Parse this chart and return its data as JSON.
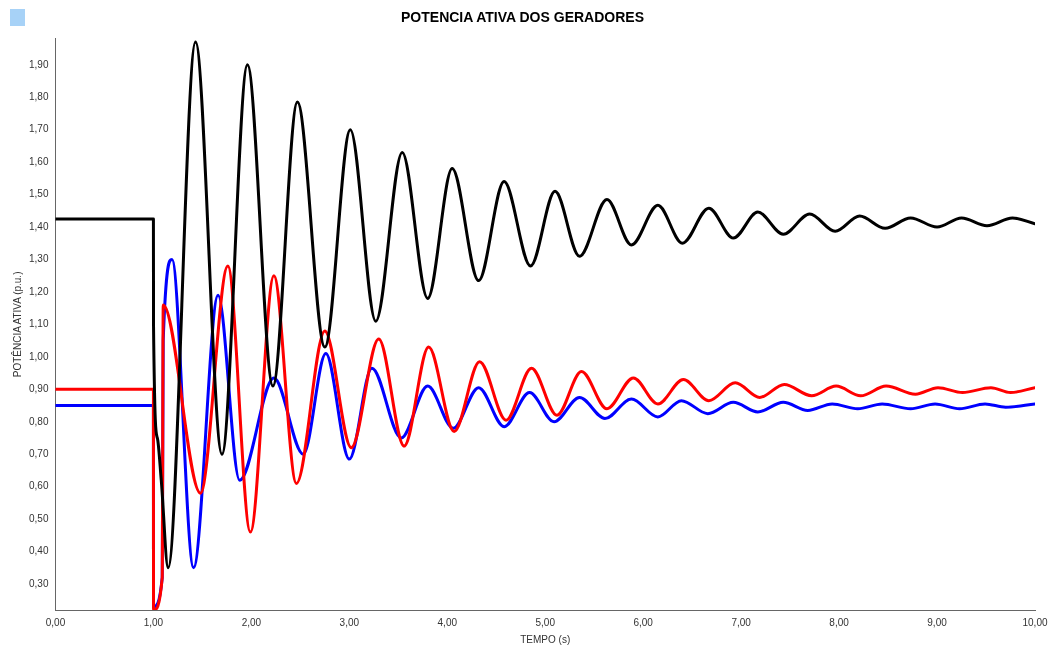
{
  "chart_data": {
    "type": "line",
    "title": "POTENCIA ATIVA DOS GERADORES",
    "xlabel": "TEMPO (s)",
    "ylabel": "POTÊNCIA ATIVA (p.u.)",
    "xlim": [
      0,
      10
    ],
    "ylim": [
      0.22,
      1.98
    ],
    "xticks": [
      {
        "value": 0,
        "label": "0,00"
      },
      {
        "value": 1,
        "label": "1,00"
      },
      {
        "value": 2,
        "label": "2,00"
      },
      {
        "value": 3,
        "label": "3,00"
      },
      {
        "value": 4,
        "label": "4,00"
      },
      {
        "value": 5,
        "label": "5,00"
      },
      {
        "value": 6,
        "label": "6,00"
      },
      {
        "value": 7,
        "label": "7,00"
      },
      {
        "value": 8,
        "label": "8,00"
      },
      {
        "value": 9,
        "label": "9,00"
      },
      {
        "value": 10,
        "label": "10,00"
      }
    ],
    "yticks": [
      {
        "value": 0.3,
        "label": "0,30"
      },
      {
        "value": 0.4,
        "label": "0,40"
      },
      {
        "value": 0.5,
        "label": "0,50"
      },
      {
        "value": 0.6,
        "label": "0,60"
      },
      {
        "value": 0.7,
        "label": "0,70"
      },
      {
        "value": 0.8,
        "label": "0,80"
      },
      {
        "value": 0.9,
        "label": "0,90"
      },
      {
        "value": 1.0,
        "label": "1,00"
      },
      {
        "value": 1.1,
        "label": "1,10"
      },
      {
        "value": 1.2,
        "label": "1,20"
      },
      {
        "value": 1.3,
        "label": "1,30"
      },
      {
        "value": 1.4,
        "label": "1,40"
      },
      {
        "value": 1.5,
        "label": "1,50"
      },
      {
        "value": 1.6,
        "label": "1,60"
      },
      {
        "value": 1.7,
        "label": "1,70"
      },
      {
        "value": 1.8,
        "label": "1,80"
      },
      {
        "value": 1.9,
        "label": "1,90"
      }
    ],
    "grid": false,
    "legend": false,
    "line_style": "solid",
    "series": [
      {
        "color": "#000000",
        "x": [
          0,
          1,
          1.001,
          1.04,
          1.08,
          1.15,
          1.43,
          1.7,
          1.96,
          2.22,
          2.47,
          2.75,
          3.01,
          3.27,
          3.54,
          3.8,
          4.05,
          4.32,
          4.58,
          4.85,
          5.1,
          5.35,
          5.63,
          5.88,
          6.15,
          6.4,
          6.67,
          6.92,
          7.17,
          7.43,
          7.7,
          7.96,
          8.21,
          8.47,
          8.73,
          9,
          9.25,
          9.51,
          9.77,
          10
        ],
        "values": [
          1.425,
          1.425,
          1.1,
          0.75,
          0.62,
          0.35,
          1.97,
          0.7,
          1.9,
          0.91,
          1.785,
          1.03,
          1.7,
          1.11,
          1.63,
          1.18,
          1.58,
          1.235,
          1.54,
          1.28,
          1.51,
          1.31,
          1.485,
          1.345,
          1.467,
          1.35,
          1.458,
          1.366,
          1.446,
          1.378,
          1.44,
          1.387,
          1.434,
          1.396,
          1.428,
          1.4,
          1.428,
          1.404,
          1.428,
          1.41
        ]
      },
      {
        "color": "#ff0000",
        "x": [
          0,
          1,
          1.001,
          1.09,
          1.1,
          1.48,
          1.76,
          1.99,
          2.23,
          2.46,
          2.75,
          3.02,
          3.3,
          3.56,
          3.81,
          4.07,
          4.33,
          4.6,
          4.86,
          5.12,
          5.37,
          5.63,
          5.9,
          6.15,
          6.41,
          6.67,
          6.94,
          7.19,
          7.44,
          7.72,
          7.97,
          8.22,
          8.48,
          8.78,
          9.01,
          9.26,
          9.55,
          9.75,
          10
        ],
        "values": [
          0.9,
          0.9,
          0.22,
          0.32,
          1.16,
          0.58,
          1.28,
          0.46,
          1.25,
          0.61,
          1.08,
          0.72,
          1.055,
          0.725,
          1.03,
          0.77,
          0.985,
          0.805,
          0.965,
          0.82,
          0.955,
          0.84,
          0.935,
          0.855,
          0.93,
          0.865,
          0.92,
          0.875,
          0.915,
          0.88,
          0.91,
          0.88,
          0.91,
          0.885,
          0.905,
          0.89,
          0.905,
          0.89,
          0.905
        ]
      },
      {
        "color": "#0000ff",
        "x": [
          0,
          1,
          1.001,
          1.09,
          1.1,
          1.19,
          1.41,
          1.66,
          1.88,
          2.23,
          2.53,
          2.76,
          3,
          3.23,
          3.53,
          3.8,
          4.06,
          4.32,
          4.58,
          4.84,
          5.09,
          5.35,
          5.61,
          5.88,
          6.15,
          6.39,
          6.66,
          6.92,
          7.17,
          7.43,
          7.68,
          7.93,
          8.19,
          8.44,
          8.73,
          8.98,
          9.23,
          9.49,
          9.7,
          10
        ],
        "values": [
          0.85,
          0.85,
          0.23,
          0.32,
          1.05,
          1.3,
          0.35,
          1.19,
          0.62,
          0.935,
          0.7,
          1.01,
          0.685,
          0.965,
          0.75,
          0.91,
          0.78,
          0.905,
          0.785,
          0.89,
          0.8,
          0.875,
          0.81,
          0.87,
          0.815,
          0.865,
          0.825,
          0.86,
          0.83,
          0.86,
          0.835,
          0.855,
          0.84,
          0.855,
          0.84,
          0.855,
          0.84,
          0.855,
          0.845,
          0.855
        ]
      }
    ]
  }
}
